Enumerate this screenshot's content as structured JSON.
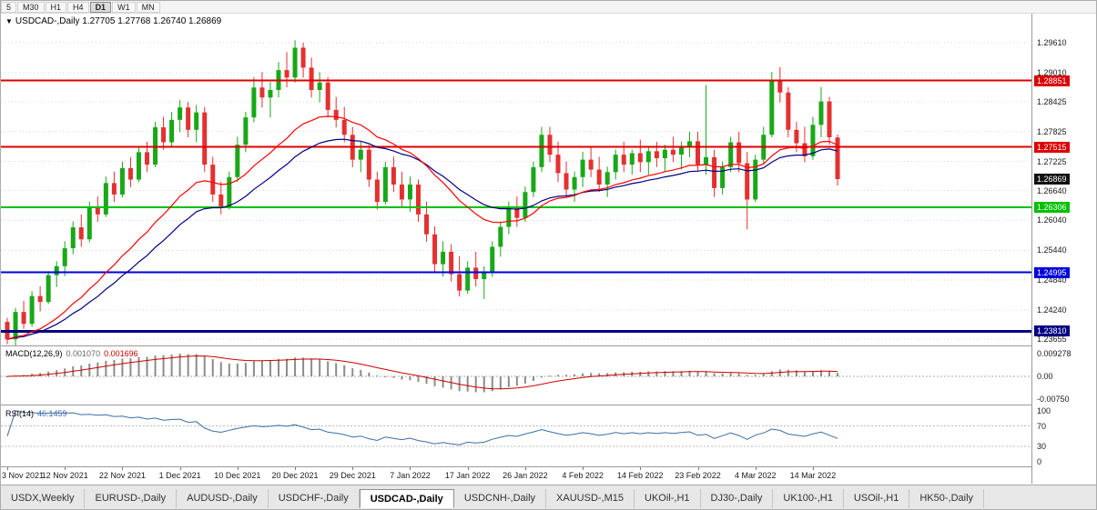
{
  "toolbar": {
    "timeframes": [
      {
        "label": "5",
        "active": false
      },
      {
        "label": "M30",
        "active": false
      },
      {
        "label": "H1",
        "active": false
      },
      {
        "label": "H4",
        "active": false
      },
      {
        "label": "D1",
        "active": true
      },
      {
        "label": "W1",
        "active": false
      },
      {
        "label": "MN",
        "active": false
      }
    ]
  },
  "chart": {
    "title_symbol": "USDCAD-,Daily",
    "ohlc_text": "1.27705 1.27768 1.26740 1.26869",
    "price_axis_ticks": [
      "1.29610",
      "1.29010",
      "1.28425",
      "1.27825",
      "1.27225",
      "1.26640",
      "1.26040",
      "1.25440",
      "1.24840",
      "1.24240",
      "1.23655"
    ],
    "levels": [
      {
        "label": "1.28851",
        "price": 1.28851,
        "color_key": "level_red",
        "width": 2
      },
      {
        "label": "1.27515",
        "price": 1.27515,
        "color_key": "level_red",
        "width": 2
      },
      {
        "label": "1.26306",
        "price": 1.26306,
        "color_key": "level_green",
        "width": 2
      },
      {
        "label": "1.24995",
        "price": 1.24995,
        "color_key": "level_blue",
        "width": 2
      },
      {
        "label": "1.23810",
        "price": 1.2381,
        "color_key": "level_navy",
        "width": 3
      }
    ],
    "current_price": {
      "label": "1.26869",
      "price": 1.26869
    },
    "dates": [
      "3 Nov 2021",
      "12 Nov 2021",
      "22 Nov 2021",
      "1 Dec 2021",
      "10 Dec 2021",
      "20 Dec 2021",
      "29 Dec 2021",
      "7 Jan 2022",
      "17 Jan 2022",
      "26 Jan 2022",
      "4 Feb 2022",
      "14 Feb 2022",
      "23 Feb 2022",
      "4 Mar 2022",
      "14 Mar 2022"
    ],
    "candles": [
      [
        1.24,
        1.2408,
        1.2355,
        1.2365
      ],
      [
        1.2365,
        1.2428,
        1.2352,
        1.242
      ],
      [
        1.242,
        1.2442,
        1.2386,
        1.2396
      ],
      [
        1.2396,
        1.2462,
        1.239,
        1.2452
      ],
      [
        1.2452,
        1.2472,
        1.2421,
        1.244
      ],
      [
        1.244,
        1.2502,
        1.2436,
        1.2494
      ],
      [
        1.2494,
        1.2522,
        1.247,
        1.2512
      ],
      [
        1.2512,
        1.2562,
        1.2492,
        1.2548
      ],
      [
        1.2548,
        1.2602,
        1.2536,
        1.259
      ],
      [
        1.259,
        1.2616,
        1.2551,
        1.2566
      ],
      [
        1.2566,
        1.2642,
        1.256,
        1.2629
      ],
      [
        1.2629,
        1.2652,
        1.2601,
        1.2616
      ],
      [
        1.2616,
        1.2692,
        1.2611,
        1.2679
      ],
      [
        1.2679,
        1.2702,
        1.2641,
        1.2656
      ],
      [
        1.2656,
        1.2722,
        1.265,
        1.2709
      ],
      [
        1.2709,
        1.2731,
        1.2671,
        1.2686
      ],
      [
        1.2686,
        1.2752,
        1.2681,
        1.2741
      ],
      [
        1.2741,
        1.2762,
        1.2701,
        1.2716
      ],
      [
        1.2716,
        1.2802,
        1.2711,
        1.2791
      ],
      [
        1.2791,
        1.2812,
        1.2746,
        1.2761
      ],
      [
        1.2761,
        1.2822,
        1.2751,
        1.2806
      ],
      [
        1.2806,
        1.2846,
        1.2781,
        1.2831
      ],
      [
        1.2831,
        1.2842,
        1.2771,
        1.2786
      ],
      [
        1.2786,
        1.2836,
        1.2761,
        1.2821
      ],
      [
        1.2821,
        1.2832,
        1.2701,
        1.2716
      ],
      [
        1.2716,
        1.2732,
        1.2641,
        1.2656
      ],
      [
        1.2656,
        1.2682,
        1.2616,
        1.2631
      ],
      [
        1.2631,
        1.2702,
        1.2626,
        1.2691
      ],
      [
        1.2691,
        1.2772,
        1.2681,
        1.2756
      ],
      [
        1.2756,
        1.2822,
        1.2741,
        1.2811
      ],
      [
        1.2811,
        1.2892,
        1.2801,
        1.2871
      ],
      [
        1.2871,
        1.2902,
        1.2831,
        1.2851
      ],
      [
        1.2851,
        1.2882,
        1.2811,
        1.2866
      ],
      [
        1.2866,
        1.2922,
        1.2851,
        1.2906
      ],
      [
        1.2906,
        1.2942,
        1.2871,
        1.2891
      ],
      [
        1.2891,
        1.2966,
        1.2881,
        1.2951
      ],
      [
        1.2951,
        1.2961,
        1.2891,
        1.2911
      ],
      [
        1.2911,
        1.2931,
        1.2851,
        1.2866
      ],
      [
        1.2866,
        1.2902,
        1.2841,
        1.2881
      ],
      [
        1.2881,
        1.2892,
        1.2811,
        1.2826
      ],
      [
        1.2826,
        1.2852,
        1.2791,
        1.2806
      ],
      [
        1.2806,
        1.2832,
        1.2761,
        1.2776
      ],
      [
        1.2776,
        1.2792,
        1.2711,
        1.2726
      ],
      [
        1.2726,
        1.2762,
        1.2701,
        1.2746
      ],
      [
        1.2746,
        1.2756,
        1.2671,
        1.2686
      ],
      [
        1.2686,
        1.2702,
        1.2626,
        1.2641
      ],
      [
        1.2641,
        1.2722,
        1.2636,
        1.2711
      ],
      [
        1.2711,
        1.2732,
        1.2661,
        1.2676
      ],
      [
        1.2676,
        1.2702,
        1.2631,
        1.2646
      ],
      [
        1.2646,
        1.2692,
        1.2621,
        1.2676
      ],
      [
        1.2676,
        1.2686,
        1.2601,
        1.2616
      ],
      [
        1.2616,
        1.2642,
        1.2561,
        1.2576
      ],
      [
        1.2576,
        1.2592,
        1.2501,
        1.2516
      ],
      [
        1.2516,
        1.2562,
        1.2491,
        1.2541
      ],
      [
        1.2541,
        1.2556,
        1.2481,
        1.2496
      ],
      [
        1.2496,
        1.2532,
        1.2451,
        1.2463
      ],
      [
        1.2463,
        1.2522,
        1.2456,
        1.2509
      ],
      [
        1.2509,
        1.2541,
        1.2471,
        1.2486
      ],
      [
        1.2486,
        1.2512,
        1.2446,
        1.2499
      ],
      [
        1.2499,
        1.2562,
        1.2491,
        1.2551
      ],
      [
        1.2551,
        1.2602,
        1.2531,
        1.2591
      ],
      [
        1.2591,
        1.2642,
        1.2576,
        1.2629
      ],
      [
        1.2629,
        1.2652,
        1.2591,
        1.2609
      ],
      [
        1.2609,
        1.2672,
        1.2601,
        1.2661
      ],
      [
        1.2661,
        1.2722,
        1.2651,
        1.2711
      ],
      [
        1.2711,
        1.2792,
        1.2701,
        1.2776
      ],
      [
        1.2776,
        1.2792,
        1.2721,
        1.2736
      ],
      [
        1.2736,
        1.2762,
        1.2681,
        1.2699
      ],
      [
        1.2699,
        1.2722,
        1.2651,
        1.2666
      ],
      [
        1.2666,
        1.2702,
        1.2641,
        1.2691
      ],
      [
        1.2691,
        1.2742,
        1.2671,
        1.2726
      ],
      [
        1.2726,
        1.2752,
        1.2691,
        1.2706
      ],
      [
        1.2706,
        1.2732,
        1.2661,
        1.2676
      ],
      [
        1.2676,
        1.2712,
        1.2651,
        1.2701
      ],
      [
        1.2701,
        1.2746,
        1.2686,
        1.2736
      ],
      [
        1.2736,
        1.2762,
        1.2701,
        1.2716
      ],
      [
        1.2716,
        1.2746,
        1.2696,
        1.2739
      ],
      [
        1.2739,
        1.2766,
        1.2701,
        1.2721
      ],
      [
        1.2721,
        1.2752,
        1.2696,
        1.2743
      ],
      [
        1.2743,
        1.2762,
        1.2711,
        1.2729
      ],
      [
        1.2729,
        1.2756,
        1.2701,
        1.2746
      ],
      [
        1.2746,
        1.2772,
        1.2721,
        1.2736
      ],
      [
        1.2736,
        1.2762,
        1.2706,
        1.2751
      ],
      [
        1.2751,
        1.2782,
        1.2731,
        1.2763
      ],
      [
        1.2763,
        1.2782,
        1.2701,
        1.2716
      ],
      [
        1.2716,
        1.2876,
        1.2696,
        1.2731
      ],
      [
        1.2731,
        1.2746,
        1.2651,
        1.2669
      ],
      [
        1.2669,
        1.2722,
        1.2656,
        1.2711
      ],
      [
        1.2711,
        1.2772,
        1.2701,
        1.2761
      ],
      [
        1.2761,
        1.2782,
        1.2701,
        1.2719
      ],
      [
        1.2719,
        1.2742,
        1.2586,
        1.2646
      ],
      [
        1.2646,
        1.2736,
        1.2641,
        1.2726
      ],
      [
        1.2726,
        1.2792,
        1.2716,
        1.2776
      ],
      [
        1.2776,
        1.2902,
        1.2771,
        1.2886
      ],
      [
        1.2886,
        1.2912,
        1.2841,
        1.2861
      ],
      [
        1.2861,
        1.2872,
        1.2771,
        1.2786
      ],
      [
        1.2786,
        1.2802,
        1.2741,
        1.2759
      ],
      [
        1.2759,
        1.2792,
        1.2721,
        1.2733
      ],
      [
        1.2733,
        1.2812,
        1.2726,
        1.2796
      ],
      [
        1.2796,
        1.2872,
        1.2771,
        1.2843
      ],
      [
        1.2843,
        1.2852,
        1.2756,
        1.2771
      ],
      [
        1.27705,
        1.27768,
        1.2674,
        1.26869
      ]
    ]
  },
  "macd": {
    "label": "MACD(12,26,9)",
    "value_hist": "0.001070",
    "value_signal": "0.001696",
    "axis_top": "0.009278",
    "axis_zero": "0.00",
    "axis_bottom": "-0.00750",
    "params": {
      "fast": 12,
      "slow": 26,
      "signal": 9
    }
  },
  "rsi": {
    "label": "RSI(14)",
    "value": "46.1459",
    "axis": [
      "100",
      "70",
      "30",
      "0"
    ],
    "levels": [
      70,
      30
    ],
    "period": 14
  },
  "tabs": [
    {
      "label": "USDX,Weekly",
      "active": false
    },
    {
      "label": "EURUSD-,Daily",
      "active": false
    },
    {
      "label": "AUDUSD-,Daily",
      "active": false
    },
    {
      "label": "USDCHF-,Daily",
      "active": false
    },
    {
      "label": "USDCAD-,Daily",
      "active": true
    },
    {
      "label": "USDCNH-,Daily",
      "active": false
    },
    {
      "label": "XAUUSD-,M15",
      "active": false
    },
    {
      "label": "UKOil-,H1",
      "active": false
    },
    {
      "label": "DJ30-,Daily",
      "active": false
    },
    {
      "label": "UK100-,H1",
      "active": false
    },
    {
      "label": "USOil-,H1",
      "active": false
    },
    {
      "label": "HK50-,Daily",
      "active": false
    }
  ],
  "colors": {
    "bull": "#18a818",
    "bear": "#e43030",
    "ma_fast": "#ff0000",
    "ma_slow": "#000080",
    "macd_hist": "#8c8c8c",
    "macd_signal": "#cc0000",
    "rsi_line": "#3a6ea5",
    "level_red": "#dd0000",
    "level_green": "#00c000",
    "level_blue": "#0000dd",
    "level_navy": "#000080",
    "current": "#111111",
    "grid": "#d4d4d4"
  }
}
